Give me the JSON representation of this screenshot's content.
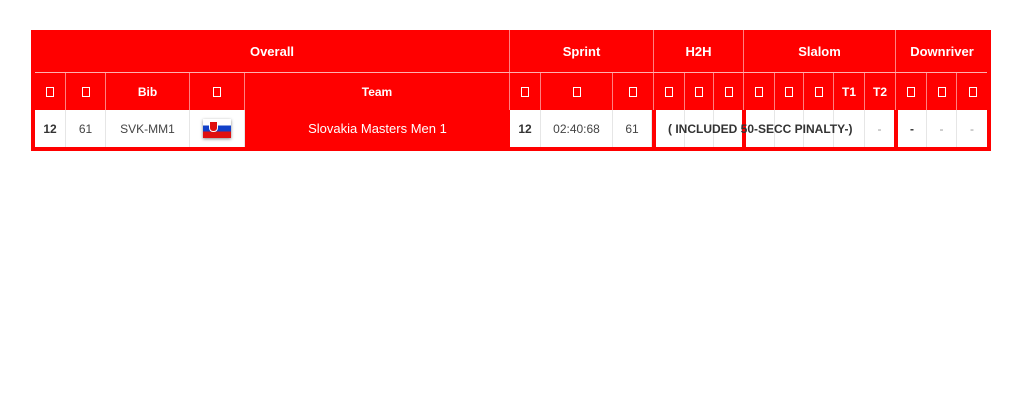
{
  "groups": [
    "Overall",
    "Sprint",
    "H2H",
    "Slalom",
    "Downriver"
  ],
  "headers": {
    "bib": "Bib",
    "team": "Team",
    "t1": "T1",
    "t2": "T2"
  },
  "header_icon": "missing-glyph-box",
  "row": {
    "rank": "12",
    "number": "61",
    "bib": "SVK-MM1",
    "flag": "slovakia-flag",
    "team": "Slovakia Masters Men 1",
    "sprint_rank": "12",
    "sprint_time": "02:40:68",
    "sprint_points": "61",
    "penalty_note": "( INCLUDED 50-SECC PINALTY-)",
    "slalom_t2": "-",
    "downriver": [
      "-",
      "-",
      "-"
    ]
  },
  "colors": {
    "accent": "#ff0000"
  }
}
